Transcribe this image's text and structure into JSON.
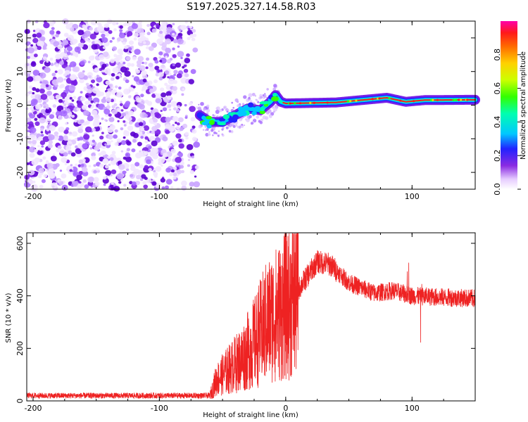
{
  "title": "S197.2025.327.14.58.R03",
  "chart_data": [
    {
      "type": "heatmap",
      "name": "spectrogram",
      "xlabel": "Height of straight line (km)",
      "ylabel": "Frequency (Hz)",
      "xlim": [
        -205,
        150
      ],
      "ylim": [
        -25,
        25
      ],
      "xticks": [
        -200,
        -100,
        0,
        100
      ],
      "yticks": [
        -20,
        -10,
        0,
        10,
        20
      ],
      "colorbar": {
        "label": "Normalized spectral amplitude",
        "ticks": [
          "0.0",
          "0.2",
          "0.4",
          "0.6",
          "0.8"
        ],
        "range": [
          0,
          1
        ]
      },
      "ridge": [
        {
          "x": -68,
          "f": -3
        },
        {
          "x": -60,
          "f": -5
        },
        {
          "x": -50,
          "f": -5
        },
        {
          "x": -40,
          "f": -3
        },
        {
          "x": -30,
          "f": -1
        },
        {
          "x": -20,
          "f": -1.5
        },
        {
          "x": -12,
          "f": 1
        },
        {
          "x": -8,
          "f": 3
        },
        {
          "x": -4,
          "f": 1
        },
        {
          "x": 0,
          "f": 0.5
        },
        {
          "x": 40,
          "f": 0.8
        },
        {
          "x": 60,
          "f": 1.5
        },
        {
          "x": 80,
          "f": 2.2
        },
        {
          "x": 95,
          "f": 1
        },
        {
          "x": 110,
          "f": 1.5
        },
        {
          "x": 150,
          "f": 1.6
        }
      ],
      "noise_end_x": -70
    },
    {
      "type": "line",
      "name": "snr",
      "xlabel": "Height of straight line (km)",
      "ylabel": "SNR (10 * v/v)",
      "xlim": [
        -205,
        150
      ],
      "ylim": [
        0,
        640
      ],
      "xticks": [
        -200,
        -100,
        0,
        100
      ],
      "yticks": [
        0,
        200,
        400,
        600
      ],
      "color": "#ee2222",
      "envelope": [
        {
          "x": -205,
          "y": 20
        },
        {
          "x": -60,
          "y": 20
        },
        {
          "x": -55,
          "y": 80
        },
        {
          "x": -45,
          "y": 120
        },
        {
          "x": -35,
          "y": 160
        },
        {
          "x": -25,
          "y": 220
        },
        {
          "x": -15,
          "y": 300
        },
        {
          "x": -5,
          "y": 340
        },
        {
          "x": 5,
          "y": 390
        },
        {
          "x": 15,
          "y": 460
        },
        {
          "x": 25,
          "y": 530
        },
        {
          "x": 35,
          "y": 520
        },
        {
          "x": 50,
          "y": 450
        },
        {
          "x": 70,
          "y": 410
        },
        {
          "x": 85,
          "y": 420
        },
        {
          "x": 100,
          "y": 400
        },
        {
          "x": 120,
          "y": 395
        },
        {
          "x": 150,
          "y": 390
        }
      ]
    }
  ]
}
